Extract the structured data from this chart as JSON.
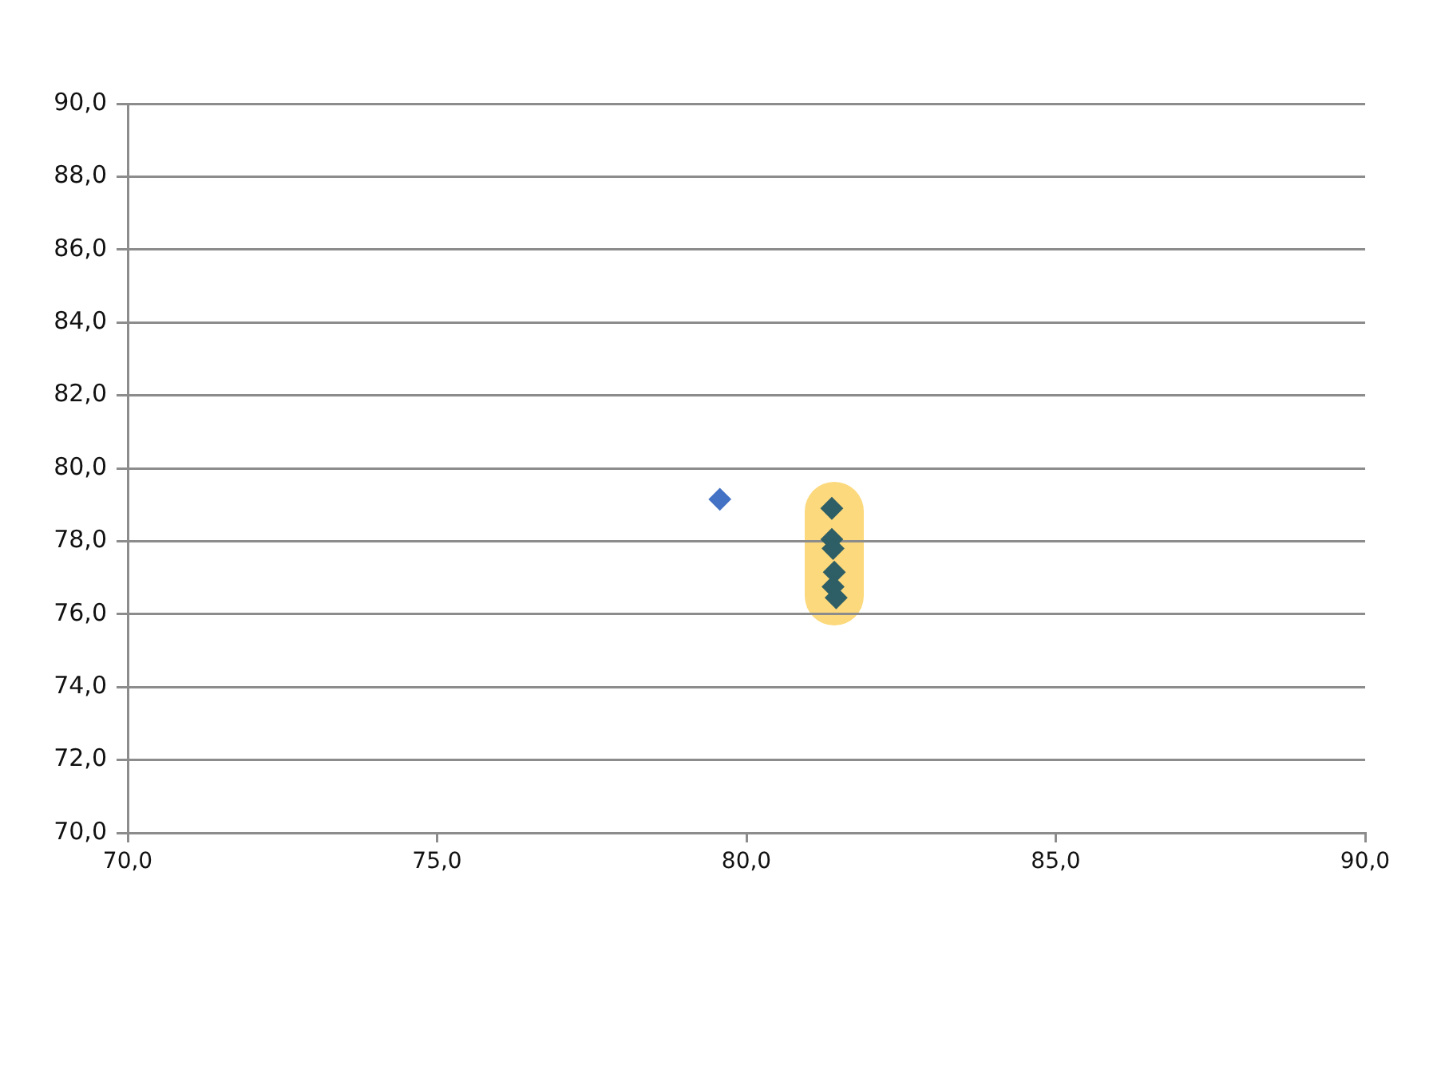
{
  "chart_data": {
    "type": "scatter",
    "series": [
      {
        "color": "#4472c4",
        "x": [
          79.57
        ],
        "values": [
          79.15
        ]
      },
      {
        "color": "#2f5f66",
        "x": [
          81.38,
          81.38,
          81.4,
          81.42,
          81.4,
          81.45
        ],
        "values": [
          78.9,
          78.05,
          77.8,
          77.15,
          76.75,
          76.45
        ]
      }
    ],
    "xlim": [
      70,
      90
    ],
    "ylim": [
      70,
      90
    ],
    "xticks": [
      {
        "value": 70,
        "label": "70,0"
      },
      {
        "value": 75,
        "label": "75,0"
      },
      {
        "value": 80,
        "label": "80,0"
      },
      {
        "value": 85,
        "label": "85,0"
      },
      {
        "value": 90,
        "label": "90,0"
      }
    ],
    "yticks": [
      {
        "value": 70,
        "label": "70,0"
      },
      {
        "value": 72,
        "label": "72,0"
      },
      {
        "value": 74,
        "label": "74,0"
      },
      {
        "value": 76,
        "label": "76,0"
      },
      {
        "value": 78,
        "label": "78,0"
      },
      {
        "value": 80,
        "label": "80,0"
      },
      {
        "value": 82,
        "label": "82,0"
      },
      {
        "value": 84,
        "label": "84,0"
      },
      {
        "value": 86,
        "label": "86,0"
      },
      {
        "value": 88,
        "label": "88,0"
      },
      {
        "value": 90,
        "label": "90,0"
      }
    ],
    "grid": "y",
    "legend": false,
    "marker": "diamond"
  }
}
